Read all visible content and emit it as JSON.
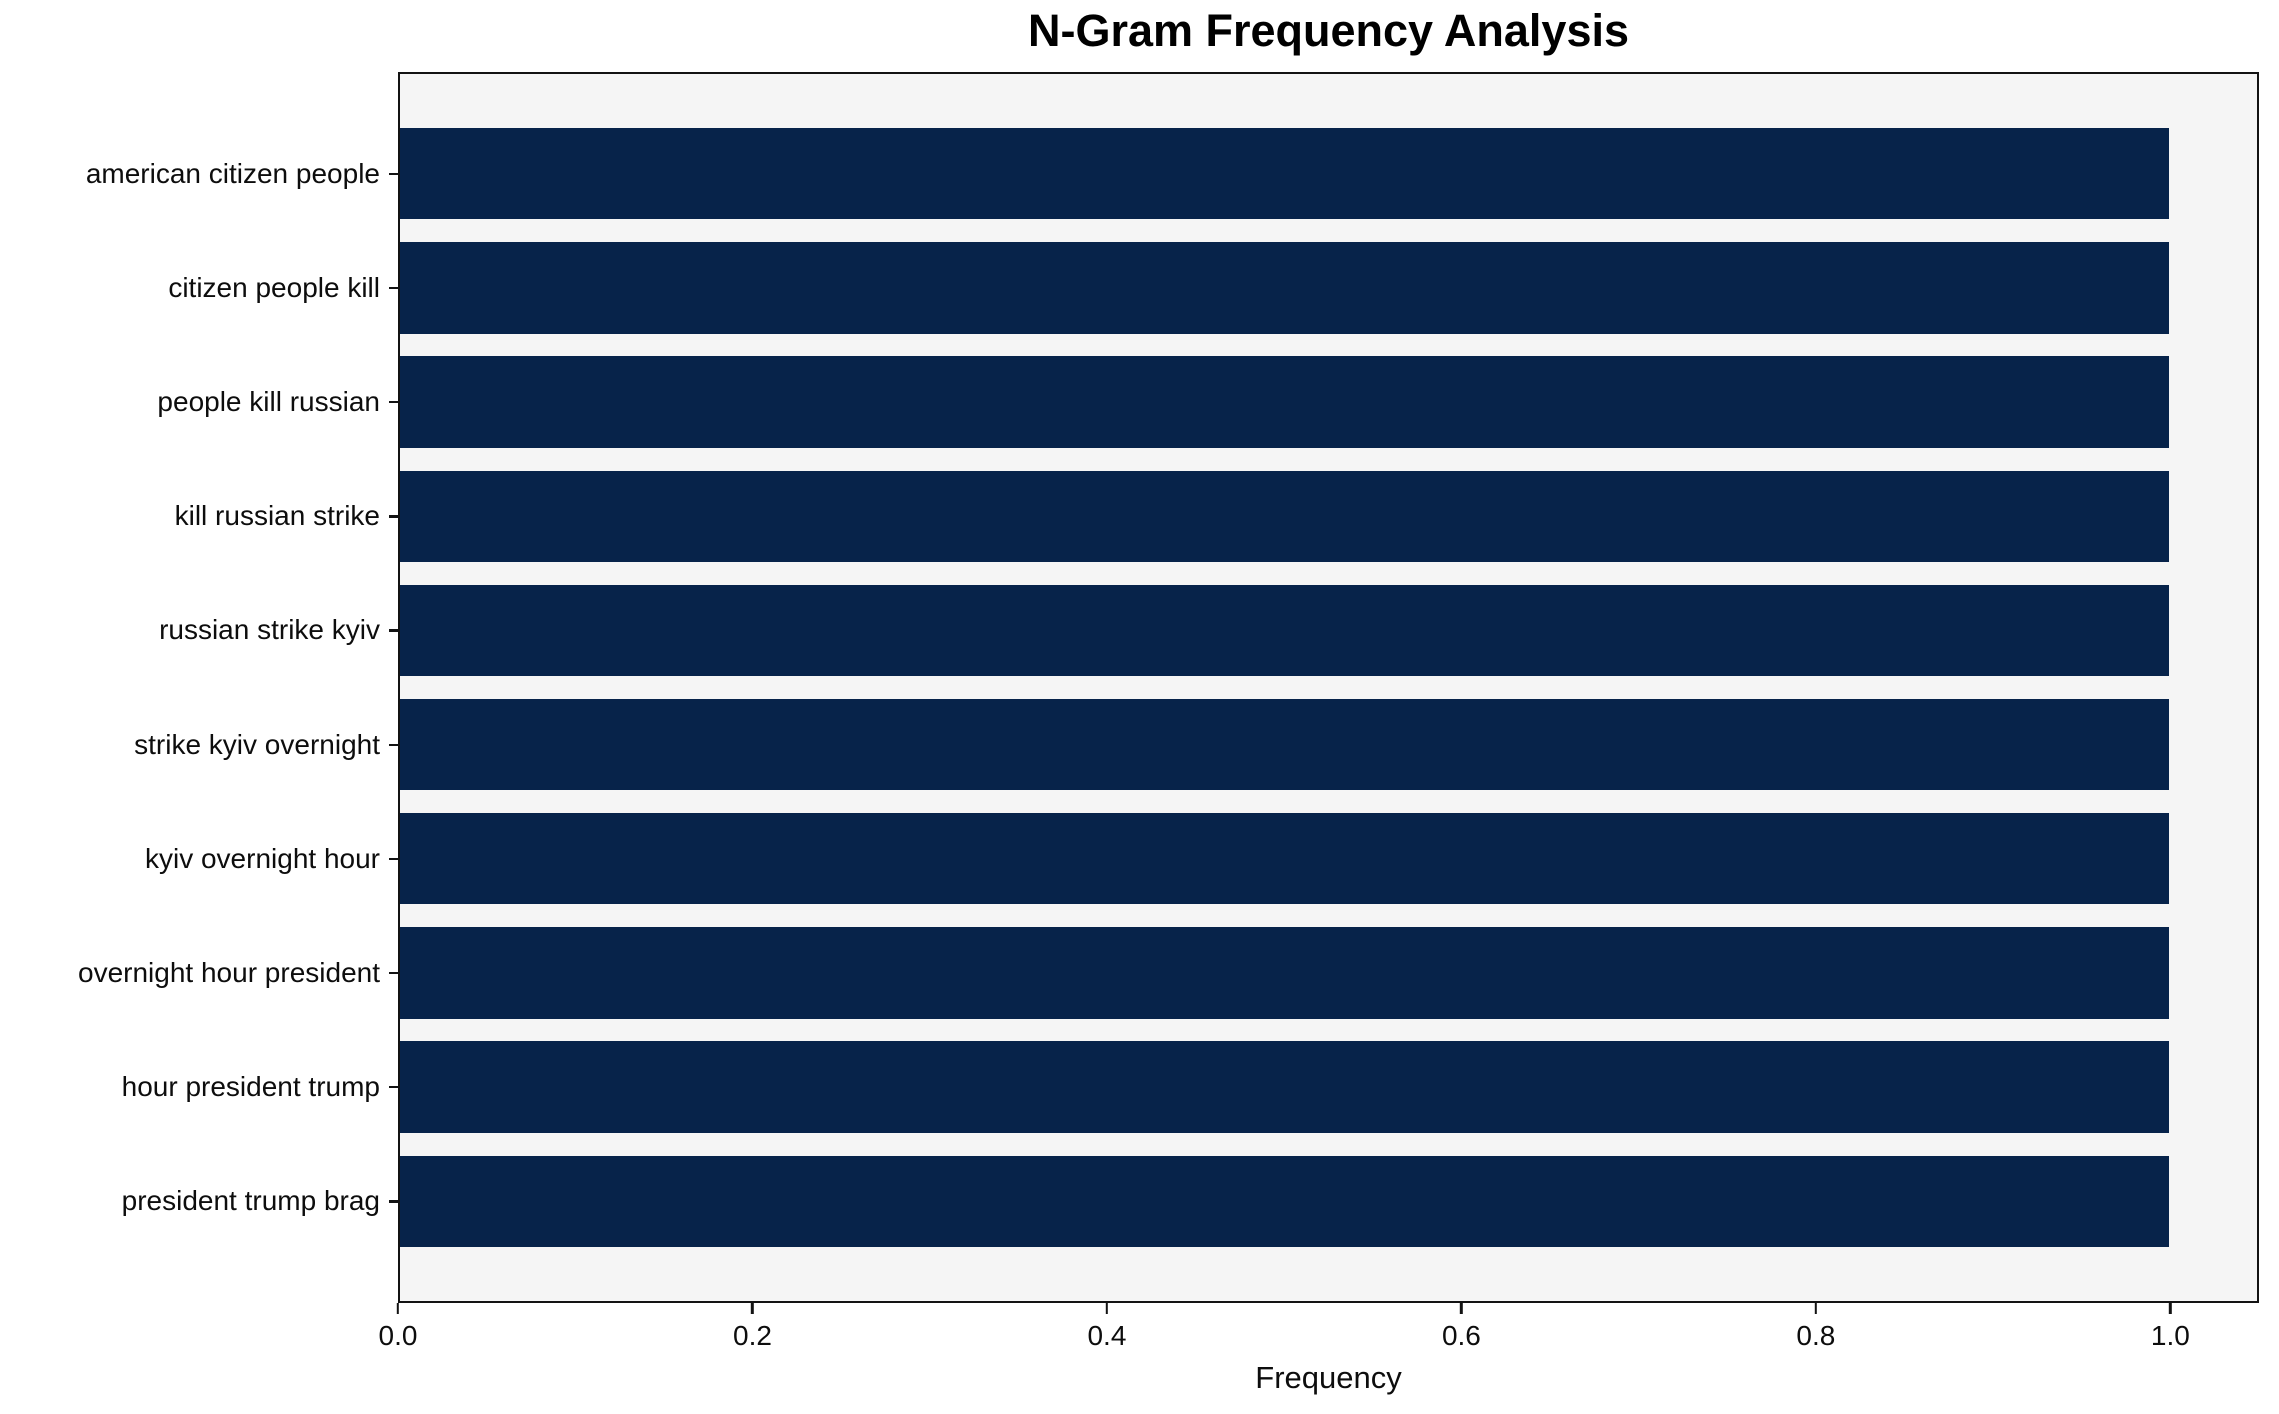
{
  "chart_data": {
    "type": "bar",
    "orientation": "horizontal",
    "title": "N-Gram Frequency Analysis",
    "xlabel": "Frequency",
    "ylabel": "",
    "categories": [
      "american citizen people",
      "citizen people kill",
      "people kill russian",
      "kill russian strike",
      "russian strike kyiv",
      "strike kyiv overnight",
      "kyiv overnight hour",
      "overnight hour president",
      "hour president trump",
      "president trump brag"
    ],
    "values": [
      1.0,
      1.0,
      1.0,
      1.0,
      1.0,
      1.0,
      1.0,
      1.0,
      1.0,
      1.0
    ],
    "xlim": [
      0,
      1.05
    ],
    "xticks": [
      0.0,
      0.2,
      0.4,
      0.6,
      0.8,
      1.0
    ],
    "xtick_labels": [
      "0.0",
      "0.2",
      "0.4",
      "0.6",
      "0.8",
      "1.0"
    ],
    "grid": false,
    "legend": false,
    "colors": {
      "bar": "#07234a",
      "plot_background": "#f5f5f5",
      "figure_background": "#ffffff",
      "spine": "#131313"
    }
  }
}
